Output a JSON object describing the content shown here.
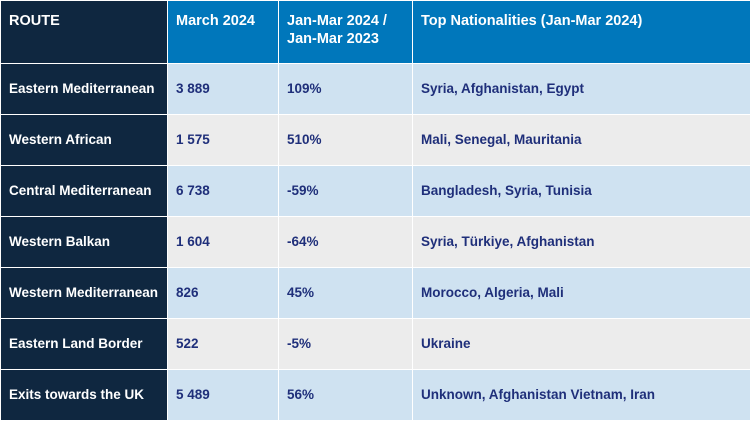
{
  "headers": {
    "route": "ROUTE",
    "march": "March 2024",
    "change": "Jan-Mar 2024 / Jan-Mar 2023",
    "nationalities": "Top Nationalities (Jan-Mar 2024)"
  },
  "rows": [
    {
      "route": "Eastern Mediterranean",
      "march": "3 889",
      "change": "109%",
      "nationalities": "Syria, Afghanistan, Egypt"
    },
    {
      "route": "Western African",
      "march": "1 575",
      "change": "510%",
      "nationalities": "Mali, Senegal, Mauritania"
    },
    {
      "route": "Central Mediterranean",
      "march": "6 738",
      "change": "-59%",
      "nationalities": "Bangladesh, Syria, Tunisia"
    },
    {
      "route": "Western Balkan",
      "march": "1 604",
      "change": "-64%",
      "nationalities": "Syria, Türkiye, Afghanistan"
    },
    {
      "route": "Western Mediterranean",
      "march": "826",
      "change": "45%",
      "nationalities": "Morocco, Algeria, Mali"
    },
    {
      "route": "Eastern Land Border",
      "march": "522",
      "change": "-5%",
      "nationalities": "Ukraine"
    },
    {
      "route": "Exits towards the UK",
      "march": "5 489",
      "change": "56%",
      "nationalities": "Unknown, Afghanistan Vietnam, Iran"
    }
  ],
  "colors": {
    "route_bg": "#0f2740",
    "header_blue": "#0077bb",
    "row_light_blue": "#cfe2f1",
    "row_light_grey": "#ececec",
    "data_text": "#1f2f7a"
  }
}
